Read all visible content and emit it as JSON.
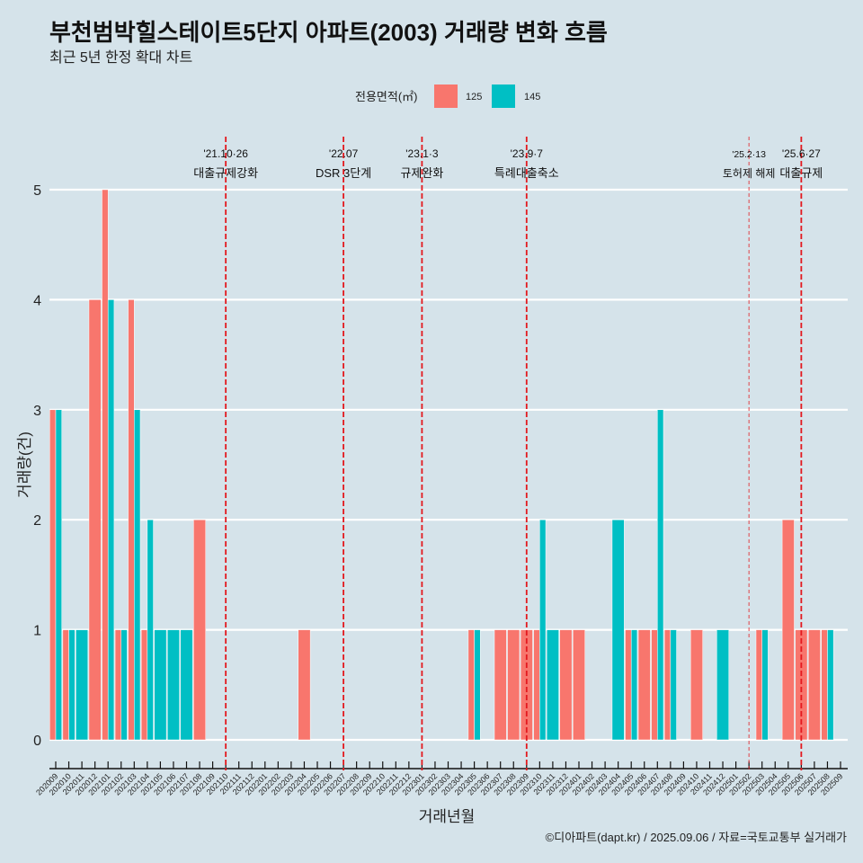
{
  "chart_data": {
    "type": "bar",
    "title": "부천범박힐스테이트5단지 아파트(2003) 거래량 변화 흐름",
    "subtitle": "최근 5년 한정 확대 차트",
    "xlabel": "거래년월",
    "ylabel": "거래량(건)",
    "ylim": [
      0,
      5
    ],
    "yticks": [
      "0",
      "1",
      "2",
      "3",
      "4",
      "5"
    ],
    "grid": "horizontal-major",
    "legend": {
      "title": "전용면적(㎡)",
      "position": "top",
      "entries": [
        "125",
        "145"
      ]
    },
    "categories": [
      "202009",
      "202010",
      "202011",
      "202012",
      "202101",
      "202102",
      "202103",
      "202104",
      "202105",
      "202106",
      "202107",
      "202108",
      "202109",
      "202110",
      "202111",
      "202112",
      "202201",
      "202202",
      "202203",
      "202204",
      "202205",
      "202206",
      "202207",
      "202208",
      "202209",
      "202210",
      "202211",
      "202212",
      "202301",
      "202302",
      "202303",
      "202304",
      "202305",
      "202306",
      "202307",
      "202308",
      "202309",
      "202310",
      "202311",
      "202312",
      "202401",
      "202402",
      "202403",
      "202404",
      "202405",
      "202406",
      "202407",
      "202408",
      "202409",
      "202410",
      "202411",
      "202412",
      "202501",
      "202502",
      "202503",
      "202504",
      "202505",
      "202506",
      "202507",
      "202508",
      "202509"
    ],
    "series": [
      {
        "name": "125",
        "color": "#F8766D",
        "values": [
          3,
          1,
          0,
          4,
          5,
          1,
          4,
          1,
          0,
          0,
          0,
          2,
          0,
          0,
          0,
          0,
          0,
          0,
          0,
          1,
          0,
          0,
          0,
          0,
          0,
          0,
          0,
          0,
          0,
          0,
          0,
          0,
          1,
          0,
          1,
          1,
          1,
          1,
          0,
          1,
          1,
          0,
          0,
          0,
          1,
          1,
          1,
          1,
          0,
          1,
          0,
          0,
          0,
          0,
          1,
          0,
          2,
          1,
          1,
          1,
          0
        ]
      },
      {
        "name": "145",
        "color": "#00BFC4",
        "values": [
          3,
          1,
          1,
          0,
          4,
          1,
          3,
          2,
          1,
          1,
          1,
          0,
          0,
          0,
          0,
          0,
          0,
          0,
          0,
          0,
          0,
          0,
          0,
          0,
          0,
          0,
          0,
          0,
          0,
          0,
          0,
          0,
          1,
          0,
          0,
          0,
          0,
          2,
          1,
          0,
          0,
          0,
          0,
          2,
          1,
          0,
          3,
          1,
          0,
          0,
          0,
          1,
          0,
          0,
          1,
          0,
          0,
          0,
          0,
          1,
          0
        ]
      }
    ],
    "annotations": [
      {
        "x": "202110",
        "date": "'21.10·26",
        "label": "대출규제강화",
        "minor": false
      },
      {
        "x": "202207",
        "date": "'22.07",
        "label": "DSR 3단계",
        "minor": false
      },
      {
        "x": "202301",
        "date": "'23.1·3",
        "label": "규제완화",
        "minor": false
      },
      {
        "x": "202309",
        "date": "'23.9·7",
        "label": "특례대출축소",
        "minor": false
      },
      {
        "x": "202502",
        "date": "'25.2·13",
        "label": "토허제 해제",
        "minor": true
      },
      {
        "x": "202506",
        "date": "'25.6·27",
        "label": "대출규제",
        "minor": false
      }
    ],
    "annotation_color": "#e3191e",
    "caption": "©디아파트(dapt.kr) / 2025.09.06 / 자료=국토교통부 실거래가"
  }
}
